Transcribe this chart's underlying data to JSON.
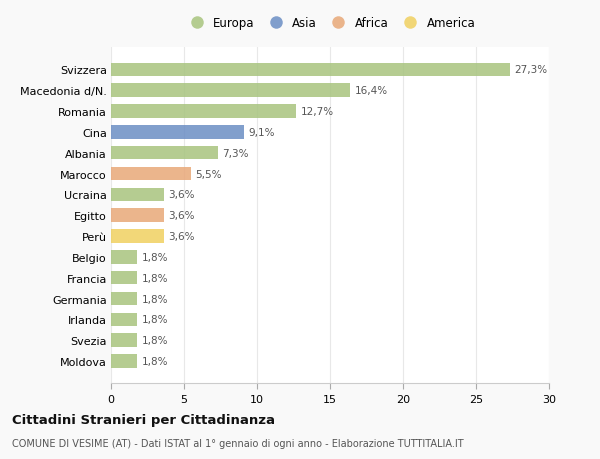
{
  "countries": [
    "Svizzera",
    "Macedonia d/N.",
    "Romania",
    "Cina",
    "Albania",
    "Marocco",
    "Ucraina",
    "Egitto",
    "Perù",
    "Belgio",
    "Francia",
    "Germania",
    "Irlanda",
    "Svezia",
    "Moldova"
  ],
  "values": [
    27.3,
    16.4,
    12.7,
    9.1,
    7.3,
    5.5,
    3.6,
    3.6,
    3.6,
    1.8,
    1.8,
    1.8,
    1.8,
    1.8,
    1.8
  ],
  "labels": [
    "27,3%",
    "16,4%",
    "12,7%",
    "9,1%",
    "7,3%",
    "5,5%",
    "3,6%",
    "3,6%",
    "3,6%",
    "1,8%",
    "1,8%",
    "1,8%",
    "1,8%",
    "1,8%",
    "1,8%"
  ],
  "continents": [
    "Europa",
    "Europa",
    "Europa",
    "Asia",
    "Europa",
    "Africa",
    "Europa",
    "Africa",
    "America",
    "Europa",
    "Europa",
    "Europa",
    "Europa",
    "Europa",
    "Europa"
  ],
  "colors": {
    "Europa": "#a8c47e",
    "Asia": "#6b8ec4",
    "Africa": "#e8a878",
    "America": "#f0d060"
  },
  "legend_order": [
    "Europa",
    "Asia",
    "Africa",
    "America"
  ],
  "title": "Cittadini Stranieri per Cittadinanza",
  "subtitle": "COMUNE DI VESIME (AT) - Dati ISTAT al 1° gennaio di ogni anno - Elaborazione TUTTITALIA.IT",
  "xlim": [
    0,
    30
  ],
  "xticks": [
    0,
    5,
    10,
    15,
    20,
    25,
    30
  ],
  "bg_color": "#f9f9f9",
  "plot_bg_color": "#ffffff",
  "grid_color": "#e8e8e8"
}
